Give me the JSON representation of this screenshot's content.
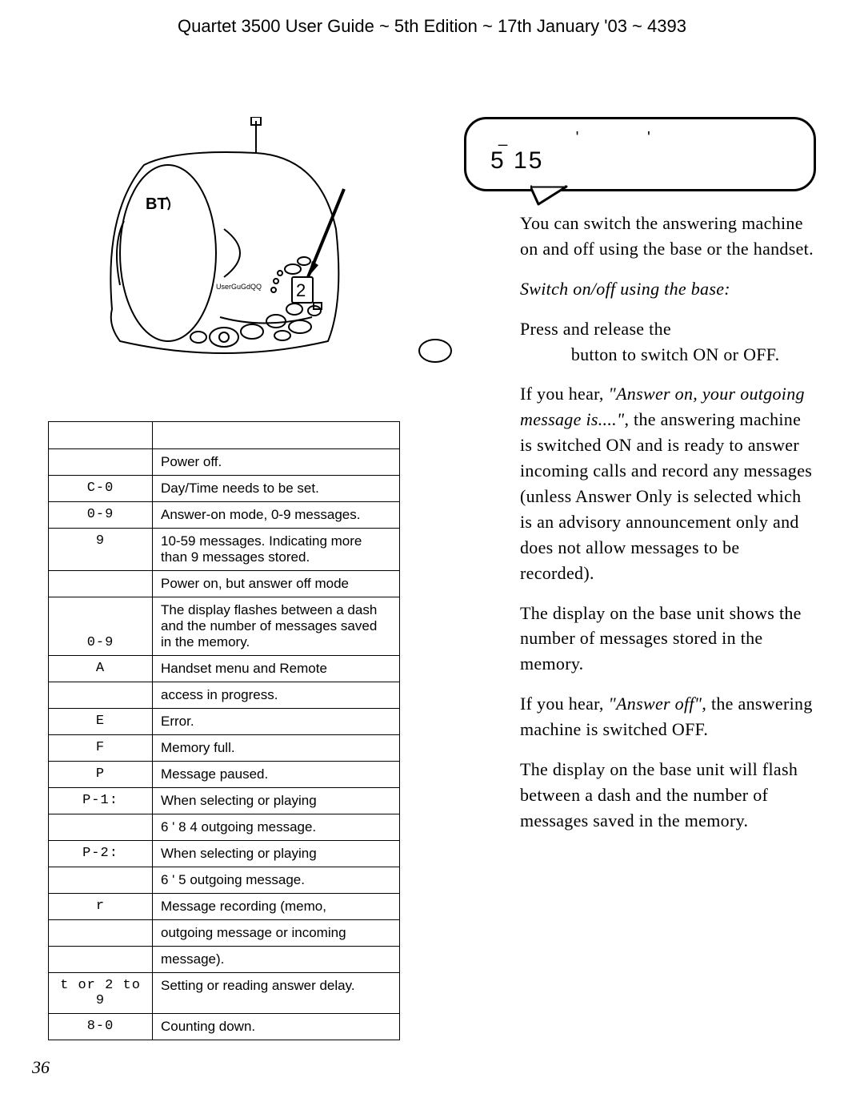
{
  "header": "Quartet 3500 User Guide ~ 5th Edition ~ 17th January '03 ~ 4393",
  "page_number": "36",
  "callout": {
    "top_text": "_   '          '",
    "num": "5 15"
  },
  "table": {
    "header_left": "",
    "header_right": "",
    "rows": [
      {
        "code": "",
        "desc": "Power off."
      },
      {
        "code": "C-0",
        "desc": "Day/Time needs to be set."
      },
      {
        "code": "0-9",
        "desc": "Answer-on mode, 0-9 messages."
      },
      {
        "code": "9",
        "desc": "10-59 messages. Indicating more than 9 messages stored."
      },
      {
        "code": "",
        "desc": "Power on, but  answer off mode"
      },
      {
        "code": "0-9",
        "desc": "The display flashes between a dash and the number of messages saved in the memory."
      },
      {
        "code": "A",
        "desc": "Handset menu and Remote"
      },
      {
        "code": "",
        "desc": "access in progress."
      },
      {
        "code": "E",
        "desc": "Error."
      },
      {
        "code": "F",
        "desc": "Memory full."
      },
      {
        "code": "P",
        "desc": "Message paused."
      },
      {
        "code": "P-1:",
        "desc": "When selecting or playing"
      },
      {
        "code": "",
        "desc": "6 '  8 4              outgoing message."
      },
      {
        "code": "P-2:",
        "desc": "When selecting or playing"
      },
      {
        "code": "",
        "desc": "6 '  5           outgoing message."
      },
      {
        "code": "r",
        "desc": "Message recording (memo,"
      },
      {
        "code": "",
        "desc": "outgoing message or incoming"
      },
      {
        "code": "",
        "desc": "message)."
      },
      {
        "code": "t or 2 to 9",
        "desc": "Setting or reading answer delay."
      },
      {
        "code": "8-0",
        "desc": "Counting down."
      }
    ]
  },
  "body": {
    "p1": "You can switch the answering machine on and off using the base or the handset.",
    "p2_italic": "Switch on/off using the base:",
    "p3a": "Press and release the",
    "p3b": "button to switch ON or OFF.",
    "p4a": "If you hear, ",
    "p4_quote": "\"Answer on, your outgoing message is....\"",
    "p4b": ", the answering machine is switched ON and is ready to answer incoming calls and record any messages (unless Answer Only is selected which is an advisory announcement only and does not allow messages to be recorded).",
    "p5": "The display on the base unit shows the number of messages stored in the memory.",
    "p6a": "If you hear, ",
    "p6_quote": "\"Answer off\"",
    "p6b": ", the answering machine is switched OFF.",
    "p7": "The display on the base unit will flash between a dash and the number of messages saved in the memory."
  },
  "colors": {
    "text": "#000000",
    "bg": "#ffffff",
    "border": "#000000"
  }
}
